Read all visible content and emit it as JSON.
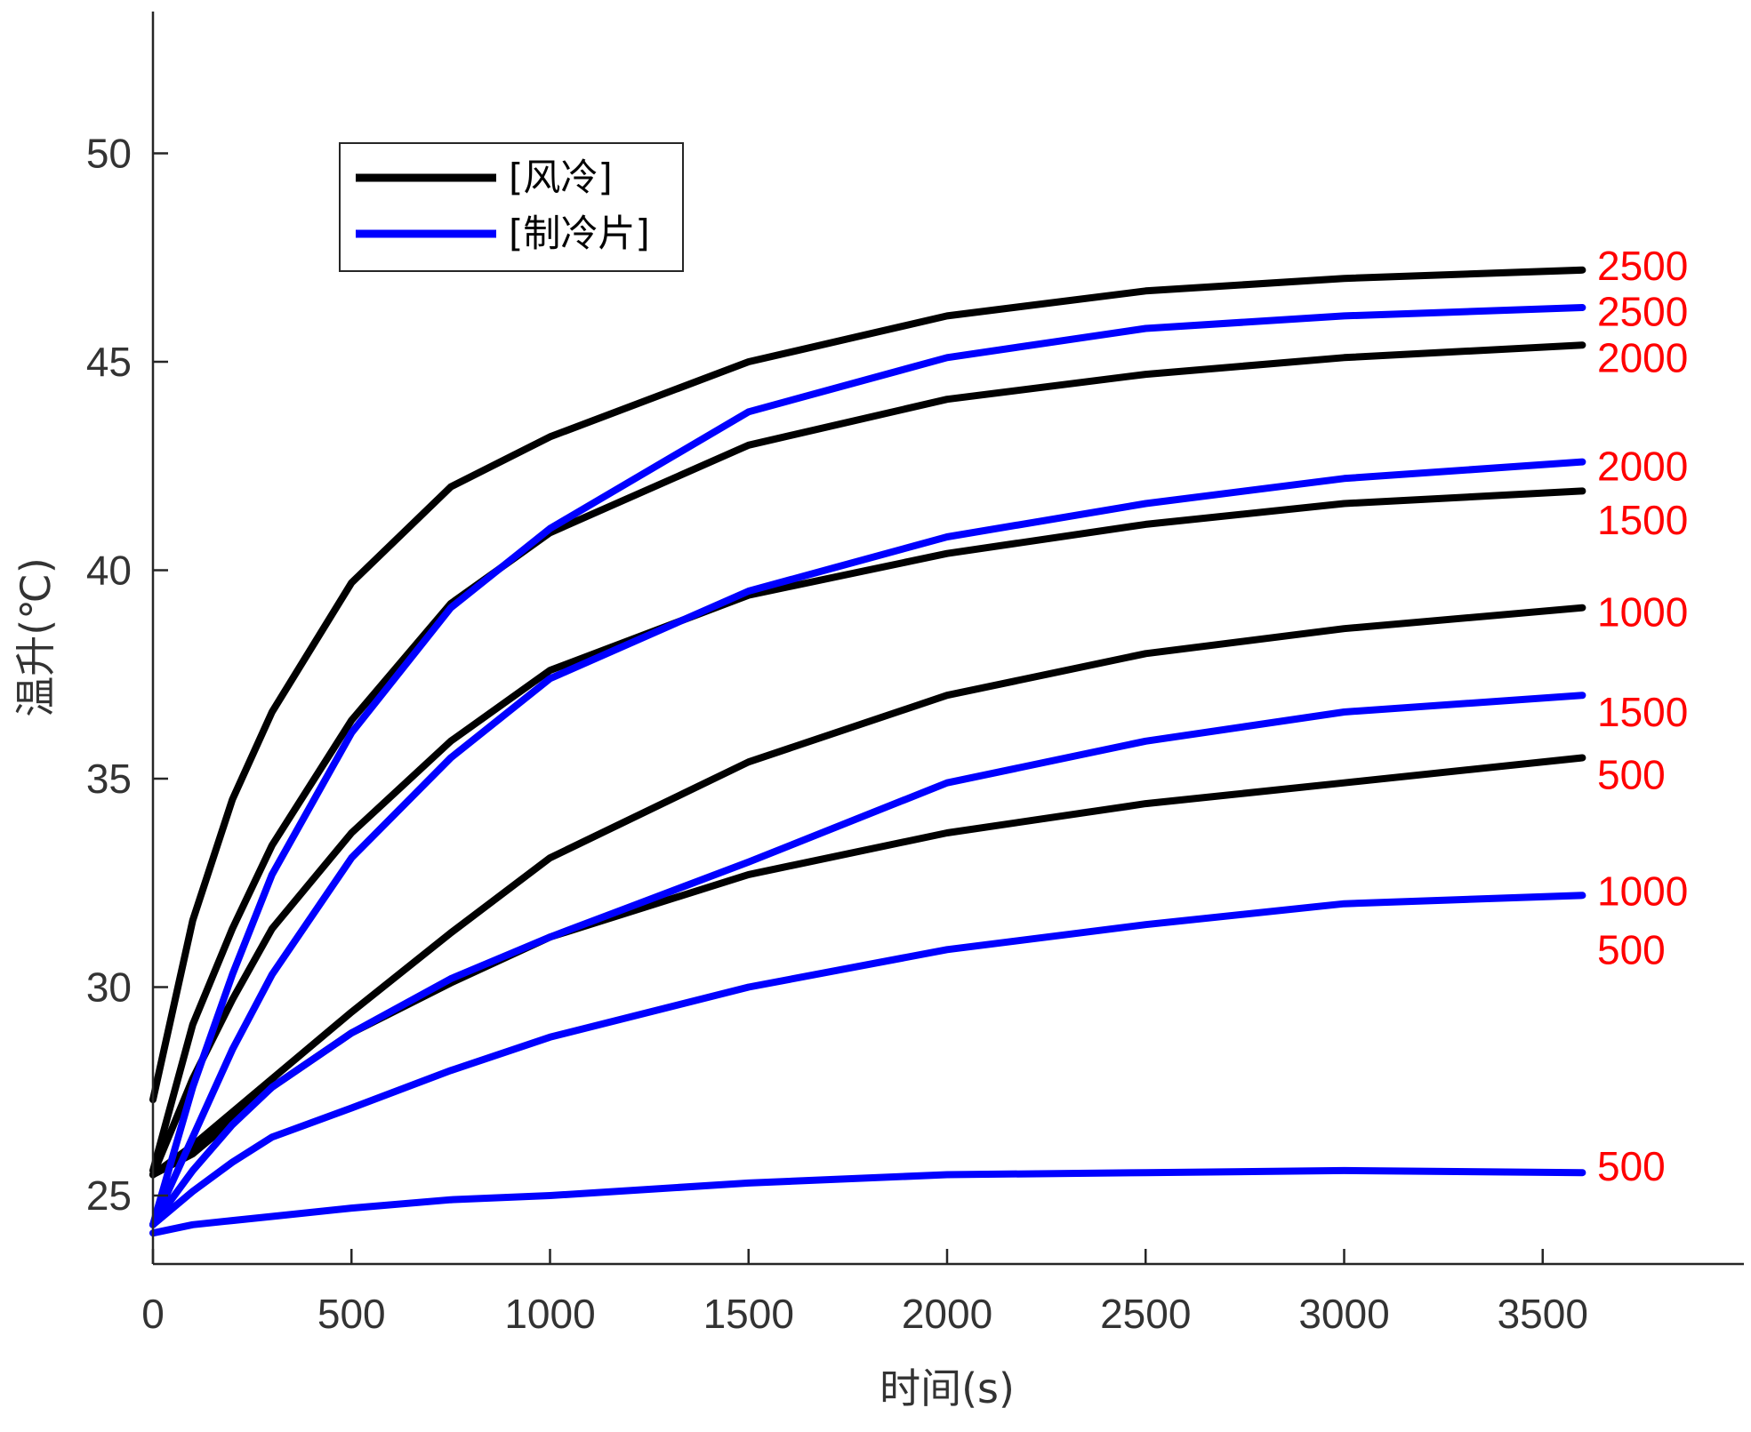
{
  "chart_data": {
    "type": "line",
    "xlabel": "时间(s)",
    "ylabel": "温升(℃)",
    "xlim": [
      0,
      4000
    ],
    "ylim": [
      24,
      53.5
    ],
    "xticks": [
      "0",
      "500",
      "1000",
      "1500",
      "2000",
      "2500",
      "3000",
      "3500"
    ],
    "yticks": [
      "25",
      "30",
      "35",
      "40",
      "45",
      "50"
    ],
    "grid": false,
    "legend_position": "top-left",
    "legend": [
      {
        "label": "[风冷]",
        "color": "#000000"
      },
      {
        "label": "[制冷片]",
        "color": "#0000ff"
      }
    ],
    "series": [
      {
        "group": "[风冷]",
        "label": "2500",
        "color": "#000000",
        "x": [
          0,
          100,
          200,
          300,
          500,
          750,
          1000,
          1500,
          2000,
          2500,
          3000,
          3600
        ],
        "y": [
          27.3,
          31.6,
          34.5,
          36.6,
          39.7,
          42.0,
          43.2,
          45.0,
          46.1,
          46.7,
          47.0,
          47.2
        ]
      },
      {
        "group": "[风冷]",
        "label": "2000",
        "color": "#000000",
        "x": [
          0,
          100,
          200,
          300,
          500,
          750,
          1000,
          1500,
          2000,
          2500,
          3000,
          3600
        ],
        "y": [
          25.6,
          29.1,
          31.4,
          33.4,
          36.4,
          39.2,
          40.9,
          43.0,
          44.1,
          44.7,
          45.1,
          45.4
        ]
      },
      {
        "group": "[风冷]",
        "label": "1500",
        "color": "#000000",
        "x": [
          0,
          100,
          200,
          300,
          500,
          750,
          1000,
          1500,
          2000,
          2500,
          3000,
          3600
        ],
        "y": [
          25.5,
          27.8,
          29.7,
          31.4,
          33.7,
          35.9,
          37.6,
          39.4,
          40.4,
          41.1,
          41.6,
          41.9
        ]
      },
      {
        "group": "[风冷]",
        "label": "1000",
        "color": "#000000",
        "x": [
          0,
          100,
          200,
          300,
          500,
          750,
          1000,
          1500,
          2000,
          2500,
          3000,
          3600
        ],
        "y": [
          25.5,
          26.2,
          27.0,
          27.8,
          29.4,
          31.3,
          33.1,
          35.4,
          37.0,
          38.0,
          38.6,
          39.1
        ]
      },
      {
        "group": "[风冷]",
        "label": "500",
        "color": "#000000",
        "x": [
          0,
          100,
          200,
          300,
          500,
          750,
          1000,
          1500,
          2000,
          2500,
          3000,
          3600
        ],
        "y": [
          25.5,
          26.0,
          26.8,
          27.6,
          28.9,
          30.1,
          31.2,
          32.7,
          33.7,
          34.4,
          34.9,
          35.5
        ]
      },
      {
        "group": "[制冷片]",
        "label": "2500",
        "color": "#0000ff",
        "x": [
          0,
          100,
          200,
          300,
          500,
          750,
          1000,
          1500,
          2000,
          2500,
          3000,
          3600
        ],
        "y": [
          24.3,
          27.6,
          30.3,
          32.7,
          36.1,
          39.1,
          41.0,
          43.8,
          45.1,
          45.8,
          46.1,
          46.3
        ]
      },
      {
        "group": "[制冷片]",
        "label": "2000",
        "color": "#0000ff",
        "x": [
          0,
          100,
          200,
          300,
          500,
          750,
          1000,
          1500,
          2000,
          2500,
          3000,
          3600
        ],
        "y": [
          24.3,
          26.4,
          28.5,
          30.3,
          33.1,
          35.5,
          37.4,
          39.5,
          40.8,
          41.6,
          42.2,
          42.6
        ]
      },
      {
        "group": "[制冷片]",
        "label": "1500",
        "color": "#0000ff",
        "x": [
          0,
          100,
          200,
          300,
          500,
          750,
          1000,
          1500,
          2000,
          2500,
          3000,
          3600
        ],
        "y": [
          24.3,
          25.6,
          26.7,
          27.6,
          28.9,
          30.2,
          31.2,
          33.0,
          34.9,
          35.9,
          36.6,
          37.0
        ]
      },
      {
        "group": "[制冷片]",
        "label": "1000",
        "color": "#0000ff",
        "x": [
          0,
          100,
          200,
          300,
          500,
          750,
          1000,
          1500,
          2000,
          2500,
          3000,
          3600
        ],
        "y": [
          24.3,
          25.1,
          25.8,
          26.4,
          27.1,
          28.0,
          28.8,
          30.0,
          30.9,
          31.5,
          32.0,
          32.2
        ]
      },
      {
        "group": "[制冷片]",
        "label": "500",
        "color": "#0000ff",
        "x": [
          0,
          100,
          200,
          300,
          500,
          750,
          1000,
          1500,
          2000,
          2500,
          3000,
          3600
        ],
        "y": [
          24.1,
          24.3,
          24.4,
          24.5,
          24.7,
          24.9,
          25.0,
          25.3,
          25.5,
          25.55,
          25.6,
          25.55
        ]
      }
    ],
    "end_labels": [
      {
        "text": "2500",
        "color": "#ff0000",
        "y": 47.3
      },
      {
        "text": "2500",
        "color": "#ff0000",
        "y": 46.2
      },
      {
        "text": "2000",
        "color": "#ff0000",
        "y": 45.1
      },
      {
        "text": "2000",
        "color": "#ff0000",
        "y": 42.5
      },
      {
        "text": "1500",
        "color": "#ff0000",
        "y": 41.2
      },
      {
        "text": "1000",
        "color": "#ff0000",
        "y": 39.0
      },
      {
        "text": "1500",
        "color": "#ff0000",
        "y": 36.6
      },
      {
        "text": "500",
        "color": "#ff0000",
        "y": 35.1
      },
      {
        "text": "1000",
        "color": "#ff0000",
        "y": 32.3
      },
      {
        "text": "500",
        "color": "#ff0000",
        "y": 30.9
      },
      {
        "text": "500",
        "color": "#ff0000",
        "y": 25.7
      }
    ]
  }
}
